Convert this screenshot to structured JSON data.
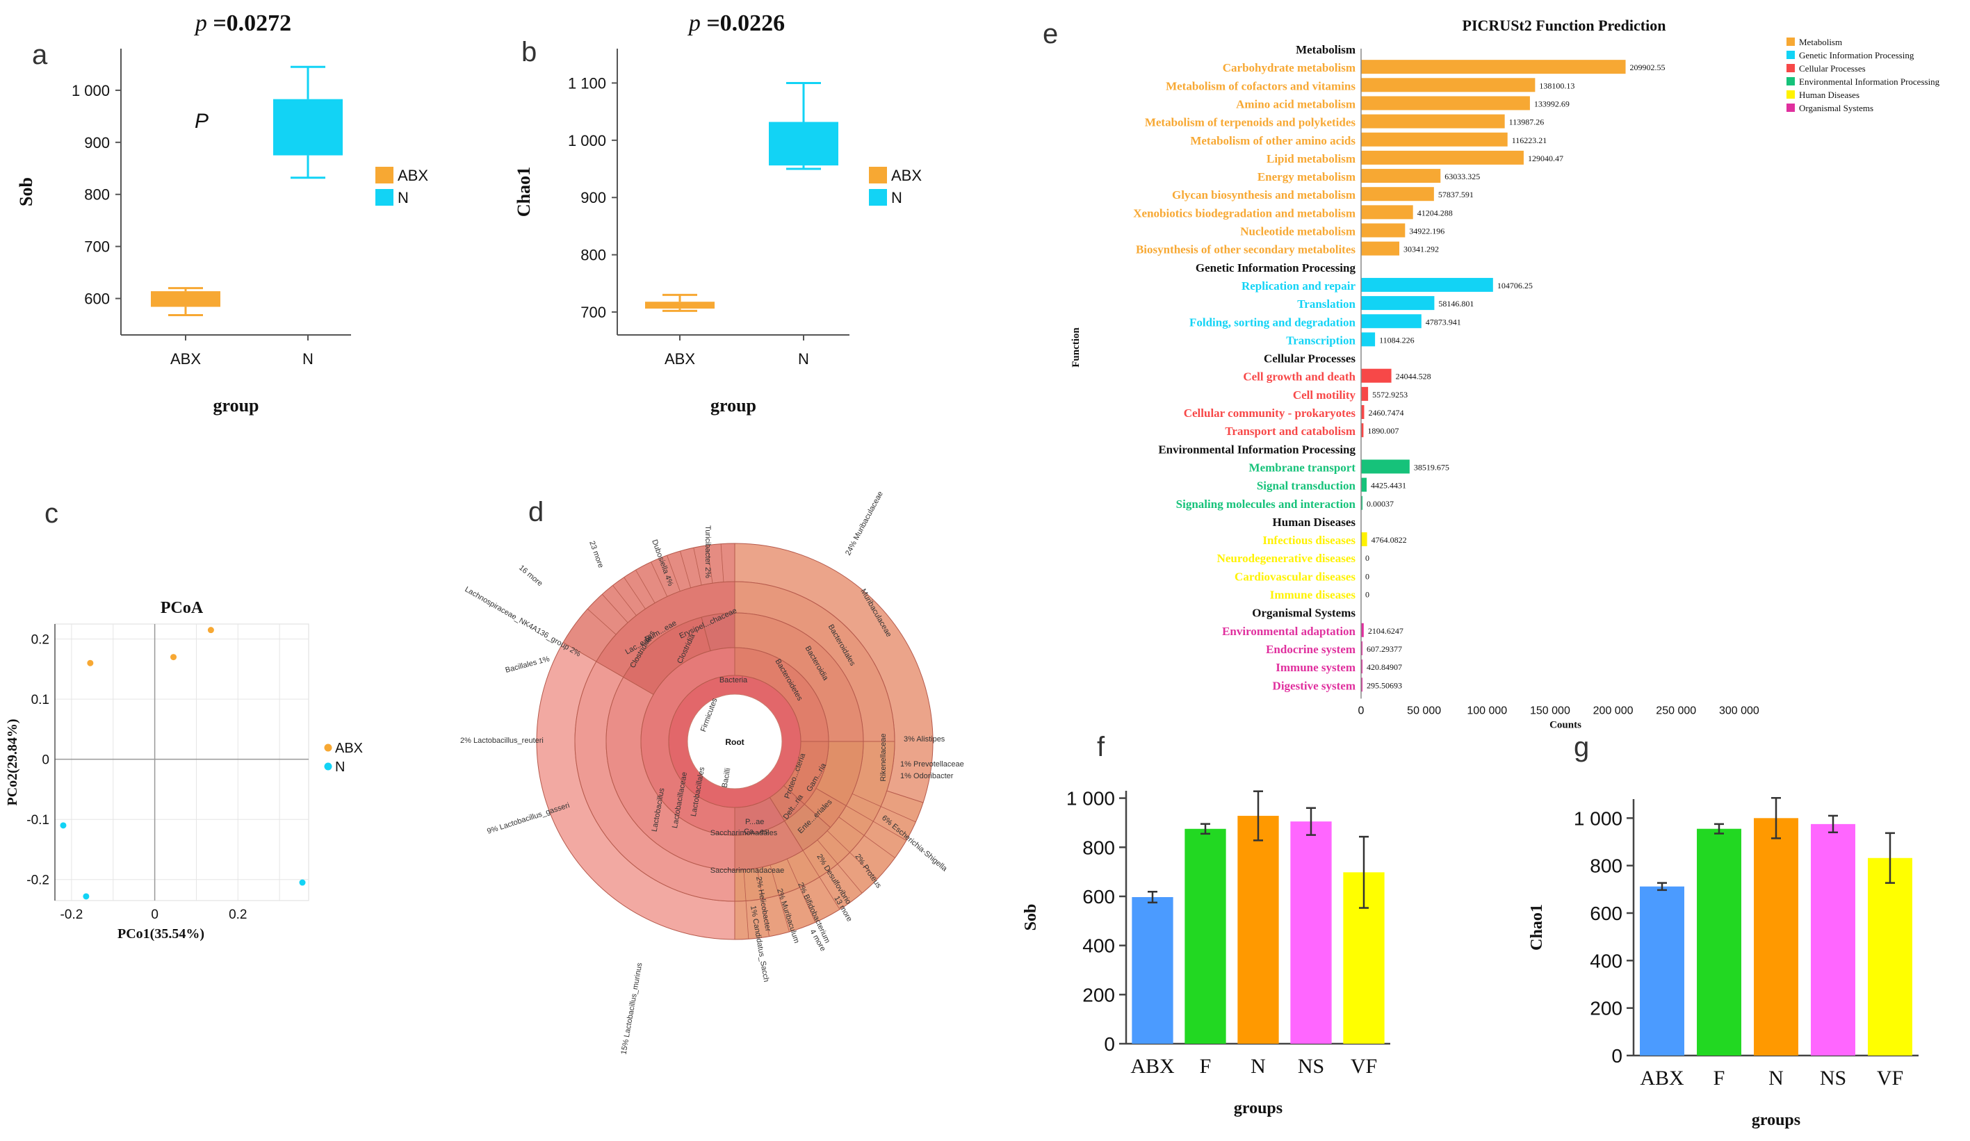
{
  "chart_data": [
    {
      "id": "a",
      "panel_label": "a",
      "type": "box",
      "title": "p =0.0272",
      "title_prefix": "p",
      "title_value": "=0.0272",
      "xlabel": "group",
      "ylabel": "Sob",
      "annotation": "P",
      "categories": [
        "ABX",
        "N"
      ],
      "ylim": [
        530,
        1080
      ],
      "yticks": [
        600,
        700,
        800,
        900,
        1000
      ],
      "ytick_labels": [
        "600",
        "700",
        "800",
        "900",
        "1 000"
      ],
      "boxes": [
        {
          "name": "ABX",
          "min": 568,
          "q1": 584,
          "median": 600,
          "q3": 614,
          "max": 620,
          "color": "#F7A833"
        },
        {
          "name": "N",
          "min": 832,
          "q1": 875,
          "median": 930,
          "q3": 983,
          "max": 1045,
          "color": "#12D3F5"
        }
      ],
      "legend": [
        {
          "label": "ABX",
          "color": "#F7A833"
        },
        {
          "label": "N",
          "color": "#12D3F5"
        }
      ]
    },
    {
      "id": "b",
      "panel_label": "b",
      "type": "box",
      "title": "p =0.0226",
      "title_prefix": "p",
      "title_value": "=0.0226",
      "xlabel": "group",
      "ylabel": "Chao1",
      "categories": [
        "ABX",
        "N"
      ],
      "ylim": [
        660,
        1160
      ],
      "yticks": [
        700,
        800,
        900,
        1000,
        1100
      ],
      "ytick_labels": [
        "700",
        "800",
        "900",
        "1 000",
        "1 100"
      ],
      "boxes": [
        {
          "name": "ABX",
          "min": 702,
          "q1": 706,
          "median": 712,
          "q3": 718,
          "max": 730,
          "color": "#F7A833"
        },
        {
          "name": "N",
          "min": 950,
          "q1": 956,
          "median": 990,
          "q3": 1032,
          "max": 1100,
          "color": "#12D3F5"
        }
      ],
      "legend": [
        {
          "label": "ABX",
          "color": "#F7A833"
        },
        {
          "label": "N",
          "color": "#12D3F5"
        }
      ]
    },
    {
      "id": "c",
      "panel_label": "c",
      "type": "scatter",
      "title": "PCoA",
      "xlabel": "PCo1(35.54%)",
      "ylabel": "PCo2(29.84%)",
      "xlim": [
        -0.24,
        0.37
      ],
      "ylim": [
        -0.235,
        0.225
      ],
      "xticks": [
        -0.2,
        0,
        0.2
      ],
      "xtick_labels": [
        "-0.2",
        "0",
        "0.2"
      ],
      "yticks": [
        -0.2,
        -0.1,
        0,
        0.1,
        0.2
      ],
      "ytick_labels": [
        "-0.2",
        "-0.1",
        "0",
        "0.1",
        "0.2"
      ],
      "series": [
        {
          "name": "ABX",
          "color": "#F7A833",
          "x": [
            -0.155,
            0.045,
            0.135
          ],
          "y": [
            0.16,
            0.17,
            0.215
          ]
        },
        {
          "name": "N",
          "color": "#12D3F5",
          "x": [
            -0.22,
            -0.165,
            0.355
          ],
          "y": [
            -0.11,
            -0.228,
            -0.205
          ]
        }
      ]
    },
    {
      "id": "d",
      "panel_label": "d",
      "type": "sunburst",
      "center_label": "Root",
      "ring1": [
        {
          "label": "Bacteria",
          "start": 0,
          "end": 360
        }
      ],
      "ring2": [
        {
          "label": "Bacteroidetes",
          "start": 0,
          "end": 90
        },
        {
          "label": "Proteobacteria",
          "start": 90,
          "end": 132
        },
        {
          "label": "Actinobacteria",
          "start": 132,
          "end": 148
        },
        {
          "label": "Saccharimonadetes",
          "start": 148,
          "end": 180
        },
        {
          "label": "Firmicutes",
          "start": 180,
          "end": 360
        }
      ],
      "ring3": [
        {
          "label": "Bacteroidia",
          "start": 0,
          "end": 90
        },
        {
          "label": "Gammaproteobacteria",
          "start": 90,
          "end": 120
        },
        {
          "label": "Deltaproteobacteria",
          "start": 120,
          "end": 132
        },
        {
          "label": "Actinobacteria",
          "start": 132,
          "end": 148
        },
        {
          "label": "Saccharimonadia",
          "start": 148,
          "end": 180
        },
        {
          "label": "Bacilli",
          "start": 180,
          "end": 300
        },
        {
          "label": "Clostridia",
          "start": 300,
          "end": 345
        },
        {
          "label": "Erysipelotrichia",
          "start": 345,
          "end": 360
        }
      ],
      "labels": [
        {
          "text": "Bacteria"
        },
        {
          "text": "Bacteroidetes"
        },
        {
          "text": "Bacteroidia"
        },
        {
          "text": "Bacteroidales"
        },
        {
          "text": "Muribaculaceae"
        },
        {
          "text": "Firmicutes"
        },
        {
          "text": "Bacilli"
        },
        {
          "text": "Lactobacillales"
        },
        {
          "text": "Lactobacillaceae"
        },
        {
          "text": "Lactobacillus"
        },
        {
          "text": "Saccharimonadales"
        },
        {
          "text": "Saccharimonadaceae"
        },
        {
          "text": "Clostridia"
        },
        {
          "text": "Erysipel...chaceae"
        },
        {
          "text": "Rikenellaceae"
        },
        {
          "text": "24%  Muribaculaceae"
        },
        {
          "text": "15%  Lactobacillus_murinus"
        },
        {
          "text": "9%  Lactobacillus_gasseri"
        },
        {
          "text": "2%  Lactobacillus_reuteri"
        },
        {
          "text": "Bacillales  1%"
        },
        {
          "text": "Lachnospiraceae_NK4A136_group  2%"
        },
        {
          "text": "16 more"
        },
        {
          "text": "23 more"
        },
        {
          "text": "Dubosiella  4%"
        },
        {
          "text": "Turicibacter  2%"
        },
        {
          "text": "3%  Alistipes"
        },
        {
          "text": "1%  Prevotellaceae"
        },
        {
          "text": "1%  Odoribacter"
        },
        {
          "text": "6%  Escherichia-Shigella"
        },
        {
          "text": "2%  Proteus"
        },
        {
          "text": "13 more"
        },
        {
          "text": "2%  Desulfovibrio"
        },
        {
          "text": "2%  Bifidobacterium"
        },
        {
          "text": "1%  Candidatus_Sacch"
        },
        {
          "text": "2%  Helicobacter"
        },
        {
          "text": "2%  Muribaculum"
        },
        {
          "text": "Lac..eae"
        },
        {
          "text": "Rum...eae"
        },
        {
          "text": "Clostridiales"
        },
        {
          "text": "Proteo...cteria"
        },
        {
          "text": "Gam...ria"
        },
        {
          "text": "Ente...eriales"
        },
        {
          "text": "Delt...ria"
        },
        {
          "text": "P...ae"
        },
        {
          "text": "Ca...es"
        },
        {
          "text": "4 more"
        }
      ]
    },
    {
      "id": "e",
      "panel_label": "e",
      "type": "bar",
      "orientation": "horizontal",
      "title": "PICRUSt2 Function Prediction",
      "xlabel": "Counts",
      "ylabel": "Function",
      "xlim": [
        0,
        310000
      ],
      "xticks": [
        0,
        50000,
        100000,
        150000,
        200000,
        250000,
        300000
      ],
      "xtick_labels": [
        "0",
        "50 000",
        "100 000",
        "150 000",
        "200 000",
        "250 000",
        "300 000"
      ],
      "legend": [
        {
          "label": "Metabolism",
          "color": "#F7A833"
        },
        {
          "label": "Genetic Information Processing",
          "color": "#12D3F5"
        },
        {
          "label": "Cellular Processes",
          "color": "#F74848"
        },
        {
          "label": "Environmental Information Processing",
          "color": "#16C27A"
        },
        {
          "label": "Human Diseases",
          "color": "#FFF200"
        },
        {
          "label": "Organismal Systems",
          "color": "#E0309E"
        }
      ],
      "groups": [
        {
          "name": "Metabolism",
          "color": "#F7A833",
          "items": [
            {
              "label": "Carbohydrate metabolism",
              "value": 209902.55,
              "value_label": "209902.55"
            },
            {
              "label": "Metabolism of cofactors and vitamins",
              "value": 138100.13,
              "value_label": "138100.13"
            },
            {
              "label": "Amino acid metabolism",
              "value": 133992.69,
              "value_label": "133992.69"
            },
            {
              "label": "Metabolism of terpenoids and polyketides",
              "value": 113987.26,
              "value_label": "113987.26"
            },
            {
              "label": "Metabolism of other amino acids",
              "value": 116223.21,
              "value_label": "116223.21"
            },
            {
              "label": "Lipid metabolism",
              "value": 129040.47,
              "value_label": "129040.47"
            },
            {
              "label": "Energy metabolism",
              "value": 63033.325,
              "value_label": "63033.325"
            },
            {
              "label": "Glycan biosynthesis and metabolism",
              "value": 57837.591,
              "value_label": "57837.591"
            },
            {
              "label": "Xenobiotics biodegradation and metabolism",
              "value": 41204.288,
              "value_label": "41204.288"
            },
            {
              "label": "Nucleotide metabolism",
              "value": 34922.196,
              "value_label": "34922.196"
            },
            {
              "label": "Biosynthesis of other secondary metabolites",
              "value": 30341.292,
              "value_label": "30341.292"
            }
          ]
        },
        {
          "name": "Genetic Information Processing",
          "color": "#12D3F5",
          "items": [
            {
              "label": "Replication and repair",
              "value": 104706.25,
              "value_label": "104706.25"
            },
            {
              "label": "Translation",
              "value": 58146.801,
              "value_label": "58146.801"
            },
            {
              "label": "Folding, sorting and degradation",
              "value": 47873.941,
              "value_label": "47873.941"
            },
            {
              "label": "Transcription",
              "value": 11084.226,
              "value_label": "11084.226"
            }
          ]
        },
        {
          "name": "Cellular Processes",
          "color": "#F74848",
          "items": [
            {
              "label": "Cell growth and death",
              "value": 24044.528,
              "value_label": "24044.528"
            },
            {
              "label": "Cell motility",
              "value": 5572.9253,
              "value_label": "5572.9253"
            },
            {
              "label": "Cellular community - prokaryotes",
              "value": 2460.7474,
              "value_label": "2460.7474"
            },
            {
              "label": "Transport and catabolism",
              "value": 1890.007,
              "value_label": "1890.007"
            }
          ]
        },
        {
          "name": "Environmental Information Processing",
          "color": "#16C27A",
          "items": [
            {
              "label": "Membrane transport",
              "value": 38519.675,
              "value_label": "38519.675"
            },
            {
              "label": "Signal transduction",
              "value": 4425.4431,
              "value_label": "4425.4431"
            },
            {
              "label": "Signaling molecules and interaction",
              "value": 0.00037,
              "value_label": "0.00037"
            }
          ]
        },
        {
          "name": "Human Diseases",
          "color": "#FFF200",
          "items": [
            {
              "label": "Infectious diseases",
              "value": 4764.0822,
              "value_label": "4764.0822"
            },
            {
              "label": "Neurodegenerative diseases",
              "value": 0,
              "value_label": "0"
            },
            {
              "label": "Cardiovascular diseases",
              "value": 0,
              "value_label": "0"
            },
            {
              "label": "Immune diseases",
              "value": 0,
              "value_label": "0"
            }
          ]
        },
        {
          "name": "Organismal Systems",
          "color": "#E0309E",
          "items": [
            {
              "label": "Environmental adaptation",
              "value": 2104.6247,
              "value_label": "2104.6247"
            },
            {
              "label": "Endocrine system",
              "value": 607.29377,
              "value_label": "607.29377"
            },
            {
              "label": "Immune system",
              "value": 420.84907,
              "value_label": "420.84907"
            },
            {
              "label": "Digestive system",
              "value": 295.50693,
              "value_label": "295.50693"
            }
          ]
        }
      ]
    },
    {
      "id": "f",
      "panel_label": "f",
      "type": "bar",
      "xlabel": "groups",
      "ylabel": "Sob",
      "categories": [
        "ABX",
        "F",
        "N",
        "NS",
        "VF"
      ],
      "values": [
        597,
        875,
        928,
        905,
        698
      ],
      "errors": [
        22,
        20,
        100,
        55,
        145
      ],
      "colors": [
        "#4B9BFF",
        "#22D822",
        "#FF9900",
        "#FF66FF",
        "#FFFF00"
      ],
      "ylim": [
        0,
        1030
      ],
      "yticks": [
        0,
        200,
        400,
        600,
        800,
        1000
      ],
      "ytick_labels": [
        "0",
        "200",
        "400",
        "600",
        "800",
        "1 000"
      ]
    },
    {
      "id": "g",
      "panel_label": "g",
      "type": "bar",
      "xlabel": "groups",
      "ylabel": "Chao1",
      "categories": [
        "ABX",
        "F",
        "N",
        "NS",
        "VF"
      ],
      "values": [
        712,
        955,
        1000,
        975,
        832
      ],
      "errors": [
        15,
        20,
        85,
        35,
        105
      ],
      "colors": [
        "#4B9BFF",
        "#22D822",
        "#FF9900",
        "#FF66FF",
        "#FFFF00"
      ],
      "ylim": [
        0,
        1080
      ],
      "yticks": [
        0,
        200,
        400,
        600,
        800,
        1000
      ],
      "ytick_labels": [
        "0",
        "200",
        "400",
        "600",
        "800",
        "1 000"
      ]
    }
  ]
}
